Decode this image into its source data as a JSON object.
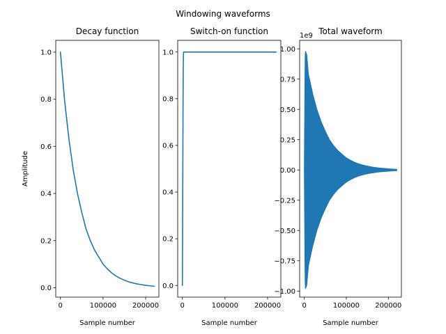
{
  "suptitle": "Windowing waveforms",
  "chart_data": [
    {
      "type": "line",
      "title": "Decay function",
      "xlabel": "Sample number",
      "ylabel": "Amplitude",
      "xlim": [
        -11000,
        231000
      ],
      "ylim": [
        -0.04,
        1.05
      ],
      "xticks": [
        0,
        100000,
        200000
      ],
      "xtick_labels": [
        "0",
        "100000",
        "200000"
      ],
      "yticks": [
        0.0,
        0.2,
        0.4,
        0.6,
        0.8,
        1.0
      ],
      "ytick_labels": [
        "0.0",
        "0.2",
        "0.4",
        "0.6",
        "0.8",
        "1.0"
      ],
      "grid": false,
      "color": "#1f77b4",
      "series": [
        {
          "x": [
            0,
            10000,
            20000,
            30000,
            40000,
            50000,
            60000,
            70000,
            80000,
            90000,
            100000,
            110000,
            120000,
            130000,
            140000,
            150000,
            160000,
            170000,
            180000,
            190000,
            200000,
            210000,
            220000
          ],
          "values": [
            1.0,
            0.79,
            0.63,
            0.5,
            0.4,
            0.32,
            0.25,
            0.2,
            0.16,
            0.13,
            0.1,
            0.08,
            0.063,
            0.05,
            0.04,
            0.032,
            0.025,
            0.02,
            0.016,
            0.013,
            0.01,
            0.008,
            0.006
          ]
        }
      ]
    },
    {
      "type": "line",
      "title": "Switch-on function",
      "xlabel": "Sample number",
      "ylabel": "",
      "xlim": [
        -11000,
        231000
      ],
      "ylim": [
        -0.05,
        1.05
      ],
      "xticks": [
        0,
        100000,
        200000
      ],
      "xtick_labels": [
        "0",
        "100000",
        "200000"
      ],
      "yticks": [
        0.0,
        0.2,
        0.4,
        0.6,
        0.8,
        1.0
      ],
      "ytick_labels": [
        "0.0",
        "0.2",
        "0.4",
        "0.6",
        "0.8",
        "1.0"
      ],
      "grid": false,
      "color": "#1f77b4",
      "series": [
        {
          "x": [
            0,
            500,
            1000,
            1500,
            2000,
            2500,
            3000,
            4000,
            6000,
            50000,
            100000,
            150000,
            220000
          ],
          "values": [
            0.0,
            0.25,
            0.5,
            0.75,
            0.93,
            0.99,
            1.0,
            1.0,
            1.0,
            1.0,
            1.0,
            1.0,
            1.0
          ]
        }
      ]
    },
    {
      "type": "area",
      "title": "Total waveform",
      "xlabel": "Sample number",
      "ylabel": "",
      "offset_text": "1e9",
      "xlim": [
        -11000,
        231000
      ],
      "ylim": [
        -1.05,
        1.07
      ],
      "xticks": [
        0,
        100000,
        200000
      ],
      "xtick_labels": [
        "0",
        "100000",
        "200000"
      ],
      "yticks": [
        -1.0,
        -0.75,
        -0.5,
        -0.25,
        0.0,
        0.25,
        0.5,
        0.75,
        1.0
      ],
      "ytick_labels": [
        "−1.00",
        "−0.75",
        "−0.50",
        "−0.25",
        "0.00",
        "0.25",
        "0.50",
        "0.75",
        "1.00"
      ],
      "grid": false,
      "color": "#1f77b4",
      "series": [
        {
          "x": [
            0,
            500,
            1000,
            1500,
            2000,
            2500,
            3000,
            4000,
            6000,
            10000,
            20000,
            30000,
            40000,
            50000,
            60000,
            70000,
            80000,
            90000,
            100000,
            110000,
            120000,
            130000,
            140000,
            150000,
            160000,
            170000,
            180000,
            190000,
            200000,
            210000,
            220000
          ],
          "envelope": [
            0.0,
            0.25,
            0.5,
            0.75,
            0.92,
            0.97,
            0.98,
            0.97,
            0.95,
            0.79,
            0.63,
            0.5,
            0.4,
            0.32,
            0.25,
            0.2,
            0.16,
            0.13,
            0.1,
            0.08,
            0.063,
            0.05,
            0.04,
            0.032,
            0.025,
            0.02,
            0.016,
            0.013,
            0.01,
            0.008,
            0.006
          ]
        }
      ]
    }
  ]
}
